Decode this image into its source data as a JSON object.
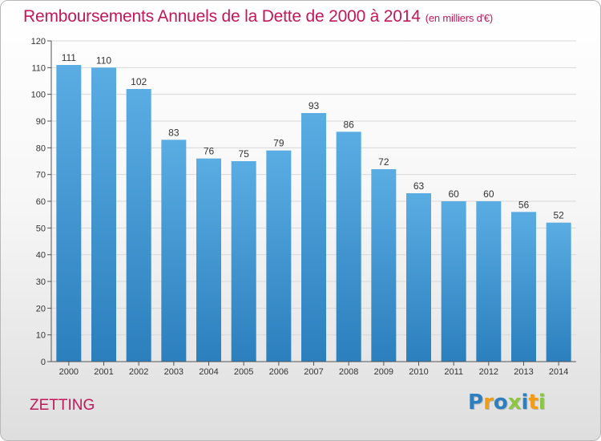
{
  "title": "Remboursements Annuels de la Dette de 2000 à 2014",
  "unit": "(en milliers d'€)",
  "commune": "ZETTING",
  "logo": {
    "letters": [
      {
        "ch": "P",
        "color": "#2e7fc0"
      },
      {
        "ch": "r",
        "color": "#f39c12"
      },
      {
        "ch": "o",
        "color": "#2e7fc0"
      },
      {
        "ch": "x",
        "color": "#8dc63f"
      },
      {
        "ch": "i",
        "color": "#2e7fc0"
      },
      {
        "ch": "t",
        "color": "#f39c12"
      },
      {
        "ch": "i",
        "color": "#8dc63f"
      }
    ]
  },
  "chart_data": {
    "type": "bar",
    "title": "Remboursements Annuels de la Dette de 2000 à 2014",
    "xlabel": "",
    "ylabel": "",
    "categories": [
      "2000",
      "2001",
      "2002",
      "2003",
      "2004",
      "2005",
      "2006",
      "2007",
      "2008",
      "2009",
      "2010",
      "2011",
      "2012",
      "2013",
      "2014"
    ],
    "values": [
      111,
      110,
      102,
      83,
      76,
      75,
      79,
      93,
      86,
      72,
      63,
      60,
      60,
      56,
      52
    ],
    "ylim": [
      0,
      120
    ],
    "yticks": [
      0,
      10,
      20,
      30,
      40,
      50,
      60,
      70,
      80,
      90,
      100,
      110,
      120
    ],
    "grid": true,
    "colors": {
      "bar_top": "#5aade3",
      "bar_bottom": "#2b7fbd",
      "grid": "#d8d8d8",
      "axis": "#555555",
      "text": "#333333"
    }
  }
}
